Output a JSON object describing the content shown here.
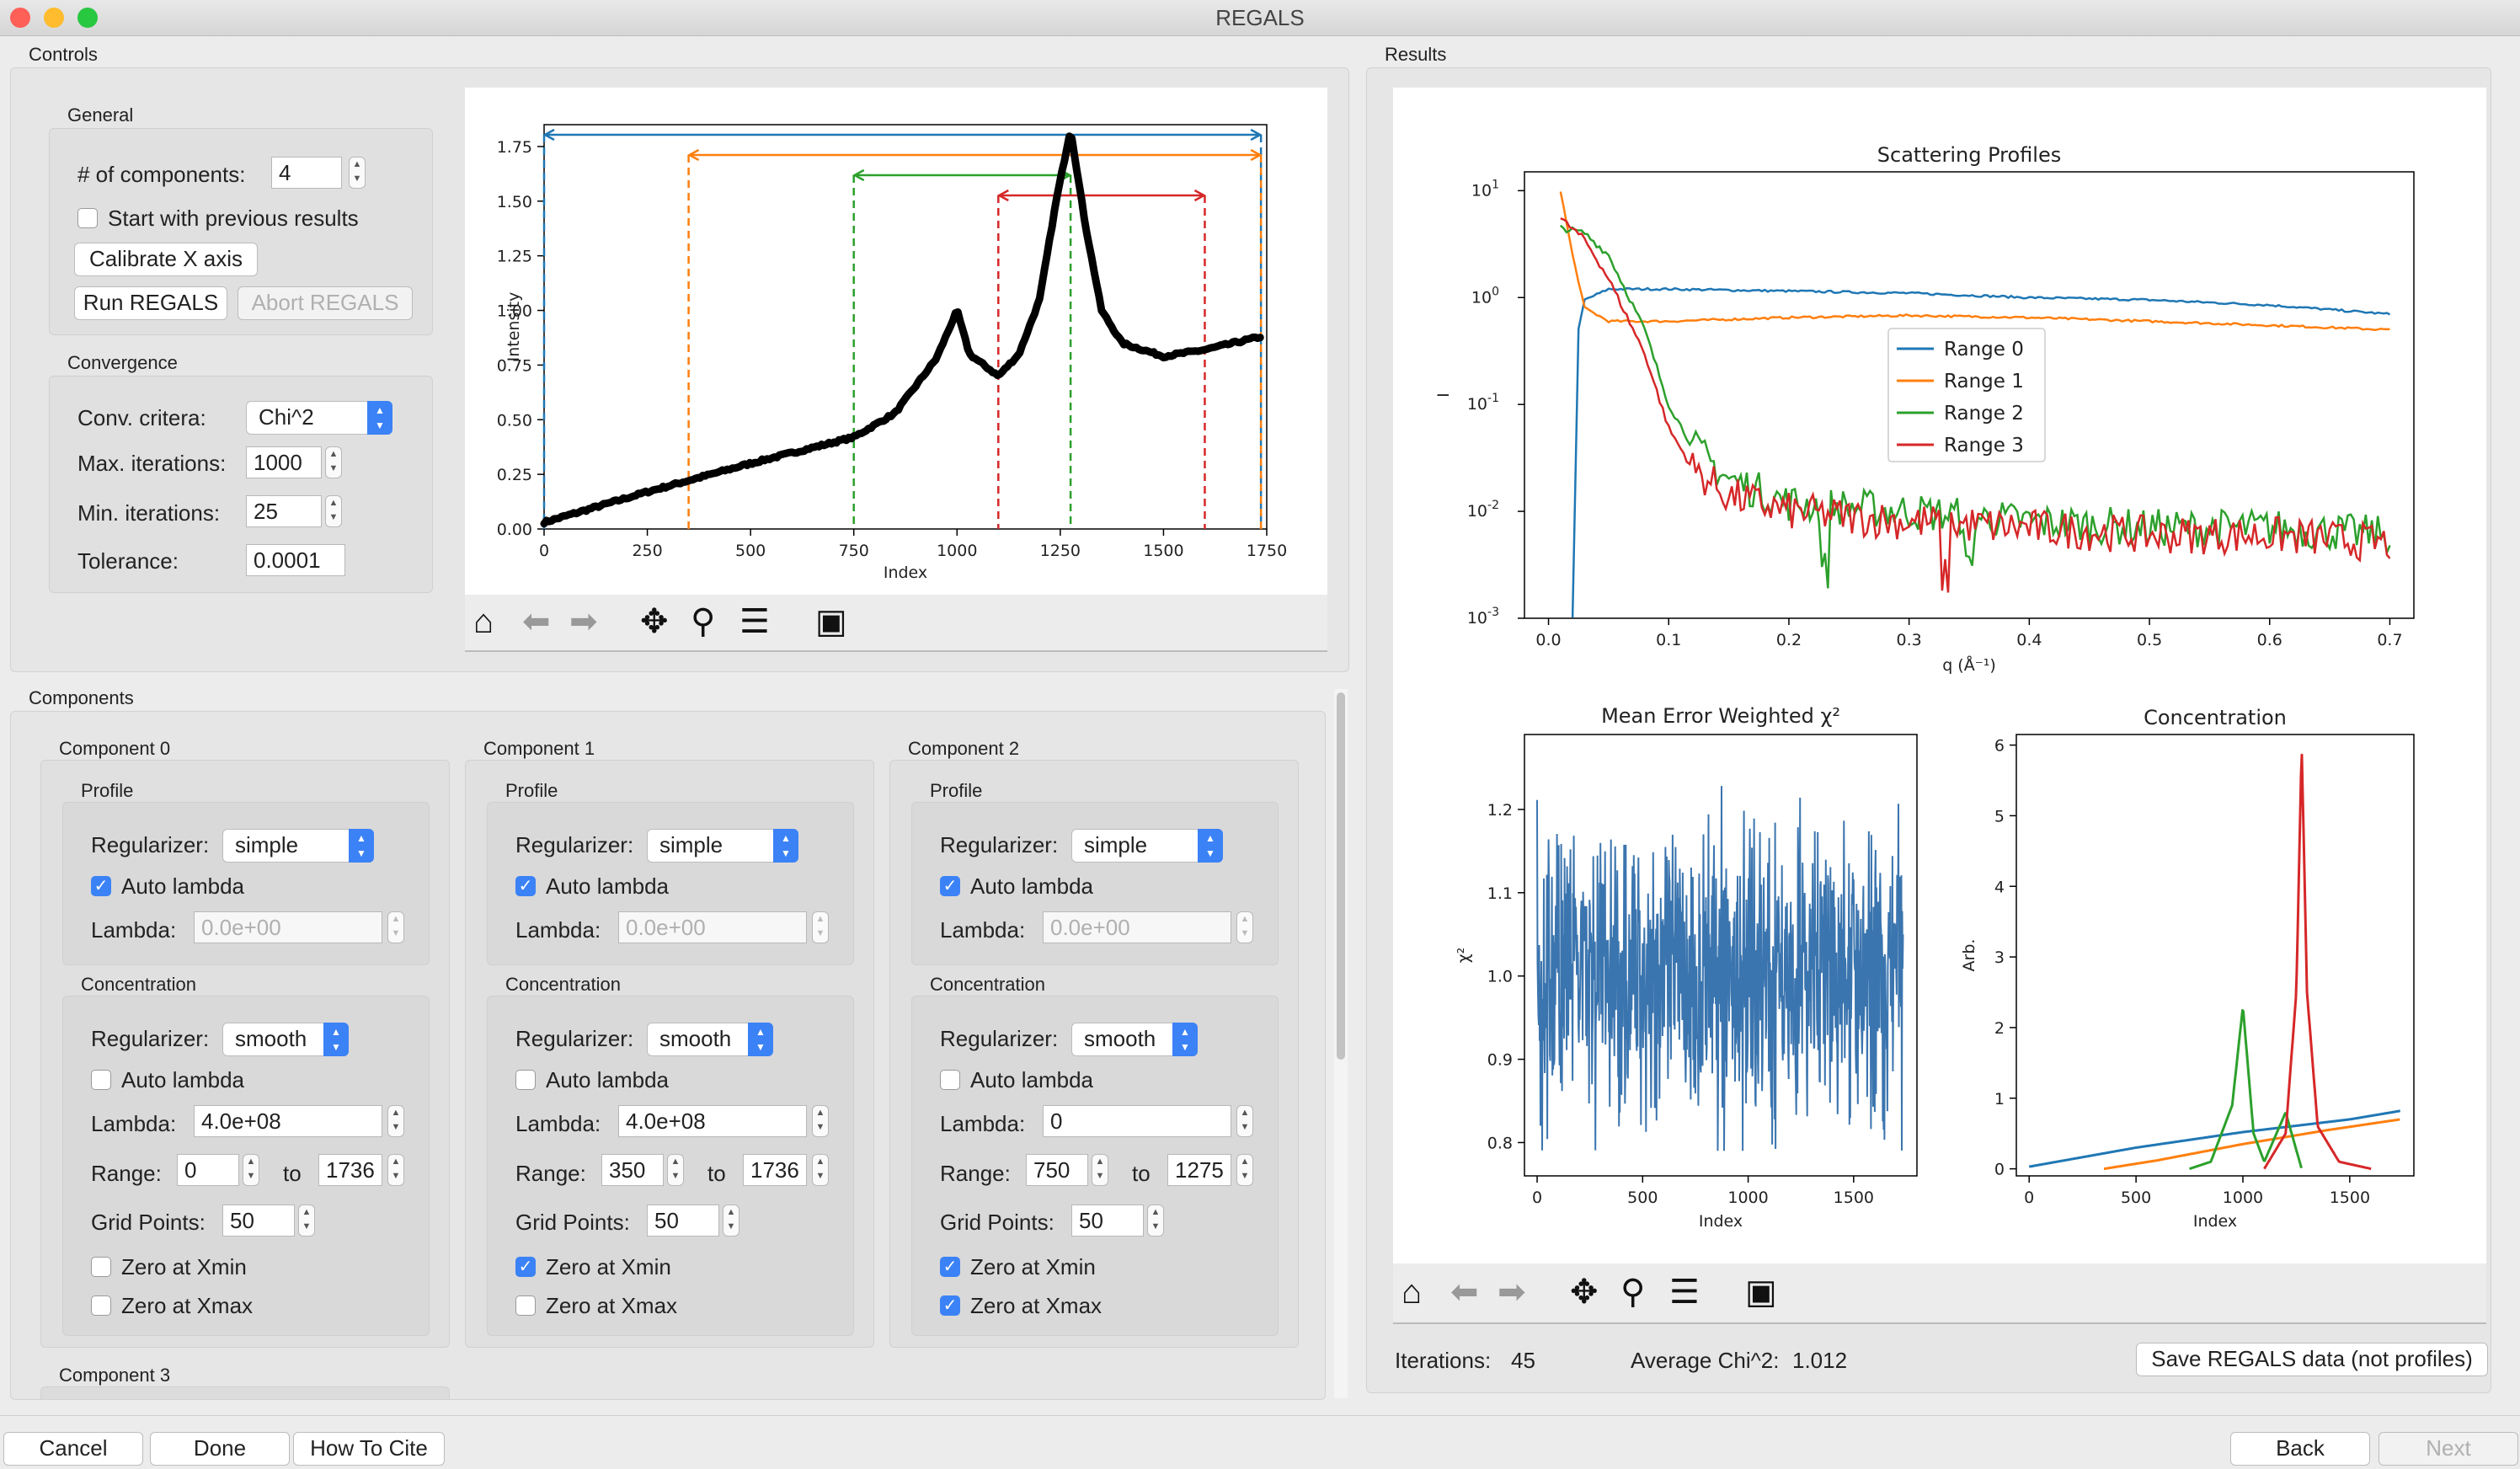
{
  "window": {
    "title": "REGALS"
  },
  "controls": {
    "section_label": "Controls",
    "general": {
      "label": "General",
      "num_components_label": "# of components:",
      "num_components_value": "4",
      "start_prev_label": "Start with previous results",
      "start_prev_checked": false,
      "calibrate_label": "Calibrate X axis",
      "run_label": "Run REGALS",
      "abort_label": "Abort REGALS"
    },
    "convergence": {
      "label": "Convergence",
      "conv_criteria_label": "Conv. critera:",
      "conv_criteria_value": "Chi^2",
      "max_iter_label": "Max. iterations:",
      "max_iter_value": "1000",
      "min_iter_label": "Min. iterations:",
      "min_iter_value": "25",
      "tolerance_label": "Tolerance:",
      "tolerance_value": "0.0001"
    }
  },
  "components": {
    "section_label": "Components",
    "profile_label": "Profile",
    "concentration_label": "Concentration",
    "regularizer_label": "Regularizer:",
    "auto_lambda_label": "Auto lambda",
    "lambda_label": "Lambda:",
    "range_label": "Range:",
    "to_label": "to",
    "grid_points_label": "Grid Points:",
    "zero_xmin_label": "Zero at Xmin",
    "zero_xmax_label": "Zero at Xmax",
    "list": [
      {
        "title": "Component 0",
        "profile_regularizer": "simple",
        "profile_auto_lambda": true,
        "profile_lambda": "0.0e+00",
        "conc_regularizer": "smooth",
        "conc_auto_lambda": false,
        "conc_lambda": "4.0e+08",
        "range_min": "0",
        "range_max": "1736",
        "grid_points": "50",
        "zero_xmin": false,
        "zero_xmax": false
      },
      {
        "title": "Component 1",
        "profile_regularizer": "simple",
        "profile_auto_lambda": true,
        "profile_lambda": "0.0e+00",
        "conc_regularizer": "smooth",
        "conc_auto_lambda": false,
        "conc_lambda": "4.0e+08",
        "range_min": "350",
        "range_max": "1736",
        "grid_points": "50",
        "zero_xmin": true,
        "zero_xmax": false
      },
      {
        "title": "Component 2",
        "profile_regularizer": "simple",
        "profile_auto_lambda": true,
        "profile_lambda": "0.0e+00",
        "conc_regularizer": "smooth",
        "conc_auto_lambda": false,
        "conc_lambda": "0",
        "range_min": "750",
        "range_max": "1275",
        "grid_points": "50",
        "zero_xmin": true,
        "zero_xmax": true
      }
    ],
    "next_title": "Component 3"
  },
  "results": {
    "section_label": "Results",
    "iterations_label": "Iterations:",
    "iterations_value": "45",
    "avg_chi_label": "Average Chi^2:",
    "avg_chi_value": "1.012",
    "save_label": "Save REGALS data (not profiles)"
  },
  "footer": {
    "cancel_label": "Cancel",
    "done_label": "Done",
    "cite_label": "How To Cite",
    "back_label": "Back",
    "next_label": "Next"
  },
  "colors": {
    "range0": "#1f77b4",
    "range1": "#ff7f0e",
    "range2": "#2ca02c",
    "range3": "#d62728",
    "accent": "#3b82f6"
  },
  "chart_data": [
    {
      "type": "line",
      "title": "",
      "xlabel": "Index",
      "ylabel": "Intensity",
      "xlim": [
        0,
        1750
      ],
      "ylim": [
        0,
        1.85
      ],
      "xticks": [
        "0",
        "250",
        "500",
        "750",
        "1000",
        "1250",
        "1500",
        "1750"
      ],
      "yticks": [
        "0.00",
        "0.25",
        "0.50",
        "0.75",
        "1.00",
        "1.25",
        "1.50",
        "1.75"
      ],
      "series": [
        {
          "values_x": [
            0,
            250,
            500,
            750,
            850,
            950,
            1000,
            1030,
            1100,
            1150,
            1200,
            1240,
            1275,
            1310,
            1350,
            1400,
            1500,
            1600,
            1736
          ],
          "values_y": [
            0.03,
            0.17,
            0.3,
            0.42,
            0.53,
            0.78,
            1.0,
            0.8,
            0.7,
            0.8,
            1.05,
            1.5,
            1.83,
            1.4,
            1.0,
            0.85,
            0.79,
            0.82,
            0.88
          ]
        }
      ],
      "ranges": [
        {
          "min": 0,
          "max": 1736
        },
        {
          "min": 350,
          "max": 1736
        },
        {
          "min": 750,
          "max": 1275
        },
        {
          "min": 1100,
          "max": 1600
        }
      ]
    },
    {
      "type": "line",
      "title": "Scattering Profiles",
      "xlabel": "q (Å⁻¹)",
      "ylabel": "I",
      "y_scale": "log",
      "xlim": [
        -0.02,
        0.72
      ],
      "ylim": [
        0.001,
        15
      ],
      "xticks": [
        "0.0",
        "0.1",
        "0.2",
        "0.3",
        "0.4",
        "0.5",
        "0.6",
        "0.7"
      ],
      "yticks": [
        "10^1",
        "10^0",
        "10^-1",
        "10^-2",
        "10^-3"
      ],
      "legend": "center",
      "series": [
        {
          "name": "Range 0",
          "x": [
            0.02,
            0.025,
            0.03,
            0.05,
            0.1,
            0.2,
            0.3,
            0.4,
            0.5,
            0.6,
            0.7
          ],
          "y": [
            0.001,
            0.5,
            0.95,
            1.2,
            1.2,
            1.15,
            1.1,
            1.0,
            0.95,
            0.85,
            0.7
          ]
        },
        {
          "name": "Range 1",
          "x": [
            0.01,
            0.02,
            0.03,
            0.05,
            0.1,
            0.2,
            0.3,
            0.4,
            0.5,
            0.6,
            0.7
          ],
          "y": [
            10,
            2.5,
            0.8,
            0.6,
            0.6,
            0.65,
            0.68,
            0.65,
            0.6,
            0.55,
            0.5
          ]
        },
        {
          "name": "Range 2",
          "x": [
            0.01,
            0.03,
            0.05,
            0.08,
            0.1,
            0.12,
            0.15,
            0.2,
            0.3,
            0.4,
            0.5,
            0.6,
            0.7
          ],
          "y": [
            4.5,
            4,
            2.5,
            0.5,
            0.1,
            0.04,
            0.02,
            0.012,
            0.01,
            0.008,
            0.007,
            0.007,
            0.006
          ]
        },
        {
          "name": "Range 3",
          "x": [
            0.01,
            0.03,
            0.05,
            0.08,
            0.1,
            0.12,
            0.15,
            0.2,
            0.3,
            0.4,
            0.5,
            0.6,
            0.7
          ],
          "y": [
            5.5,
            3.5,
            1.5,
            0.3,
            0.06,
            0.025,
            0.014,
            0.01,
            0.008,
            0.007,
            0.006,
            0.006,
            0.005
          ]
        }
      ]
    },
    {
      "type": "line",
      "title": "Mean Error Weighted χ²",
      "xlabel": "Index",
      "ylabel": "χ²",
      "xlim": [
        -60,
        1800
      ],
      "ylim": [
        0.76,
        1.29
      ],
      "xticks": [
        "0",
        "500",
        "1000",
        "1500"
      ],
      "yticks": [
        "0.8",
        "0.9",
        "1.0",
        "1.1",
        "1.2"
      ],
      "series": [
        {
          "name": "",
          "mean": 1.0,
          "spread": 0.25,
          "n_points": 1736
        }
      ]
    },
    {
      "type": "line",
      "title": "Concentration",
      "xlabel": "Index",
      "ylabel": "Arb.",
      "xlim": [
        -60,
        1800
      ],
      "ylim": [
        -0.1,
        6.15
      ],
      "xticks": [
        "0",
        "500",
        "1000",
        "1500"
      ],
      "yticks": [
        "0",
        "1",
        "2",
        "3",
        "4",
        "5",
        "6"
      ],
      "series": [
        {
          "name": "Range 0",
          "x": [
            0,
            500,
            1000,
            1500,
            1736
          ],
          "y": [
            0.03,
            0.3,
            0.52,
            0.7,
            0.82
          ]
        },
        {
          "name": "Range 1",
          "x": [
            350,
            600,
            1000,
            1400,
            1736
          ],
          "y": [
            0,
            0.12,
            0.35,
            0.55,
            0.7
          ]
        },
        {
          "name": "Range 2",
          "x": [
            750,
            850,
            950,
            1000,
            1050,
            1100,
            1200,
            1275
          ],
          "y": [
            0,
            0.1,
            0.9,
            2.3,
            0.5,
            0.1,
            0.8,
            0
          ]
        },
        {
          "name": "Range 3",
          "x": [
            1100,
            1200,
            1250,
            1275,
            1300,
            1350,
            1450,
            1600
          ],
          "y": [
            0,
            0.5,
            2.5,
            6.0,
            2.5,
            0.6,
            0.1,
            0
          ]
        }
      ]
    }
  ]
}
